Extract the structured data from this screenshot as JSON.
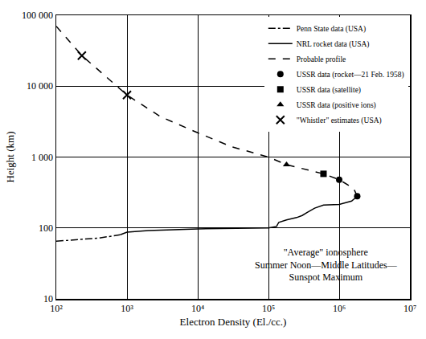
{
  "chart_data": {
    "type": "line",
    "x_label": "Electron Density (El./cc.)",
    "y_label": "Height (km)",
    "annotation": [
      "\"Average\" ionosphere",
      "Summer Noon—Middle Latitudes—",
      "Sunspot Maximum"
    ],
    "log": true,
    "grid": true,
    "legend": "upper right",
    "xlim": [
      100,
      10000000
    ],
    "ylim": [
      10,
      100000
    ],
    "xticks": [
      {
        "value": 100,
        "label": "10²"
      },
      {
        "value": 1000,
        "label": "10³"
      },
      {
        "value": 10000,
        "label": "10⁴"
      },
      {
        "value": 100000,
        "label": "10⁵"
      },
      {
        "value": 1000000,
        "label": "10⁶"
      },
      {
        "value": 10000000,
        "label": "10⁷"
      }
    ],
    "yticks": [
      10,
      100,
      {
        "value": 1000,
        "label": "1 000"
      },
      {
        "value": 10000,
        "label": "10 000"
      },
      {
        "value": 100000,
        "label": "100 000"
      }
    ],
    "series": [
      {
        "name": "Penn State data (USA)",
        "type": "line",
        "line_style": "dashdot",
        "color": "#000000",
        "x": [
          100,
          200,
          400,
          800
        ],
        "values": [
          65,
          68,
          72,
          80
        ]
      },
      {
        "name": "NRL rocket data (USA)",
        "type": "line",
        "line_style": "solid",
        "color": "#000000",
        "x": [
          800,
          1000,
          2000,
          10000,
          100000,
          130000,
          140000,
          180000,
          250000,
          300000,
          350000,
          450000,
          600000,
          1000000,
          1500000,
          1800000
        ],
        "values": [
          80,
          87,
          92,
          97,
          100,
          105,
          120,
          130,
          140,
          150,
          165,
          190,
          210,
          215,
          240,
          280
        ]
      },
      {
        "name": "Probable profile",
        "type": "line",
        "line_style": "dashed",
        "color": "#000000",
        "x": [
          100,
          230,
          1000,
          3000,
          10000,
          30000,
          100000,
          180000,
          600000,
          1000000,
          1600000,
          1800000
        ],
        "values": [
          70000,
          27000,
          7500,
          3700,
          2200,
          1400,
          1000,
          780,
          580,
          480,
          360,
          280
        ]
      },
      {
        "name": "USSR data (rocket—21 Feb. 1958)",
        "type": "scatter",
        "marker": "circle",
        "color": "#000000",
        "x": [
          1000000,
          1800000
        ],
        "values": [
          480,
          280
        ]
      },
      {
        "name": "USSR data (satellite)",
        "type": "scatter",
        "marker": "square",
        "color": "#000000",
        "x": [
          600000
        ],
        "values": [
          580
        ]
      },
      {
        "name": "USSR data (positive ions)",
        "type": "scatter",
        "marker": "triangle",
        "color": "#000000",
        "x": [
          180000
        ],
        "values": [
          780
        ]
      },
      {
        "name": "\"Whistler\" estimates (USA)",
        "type": "scatter",
        "marker": "x",
        "color": "#000000",
        "x": [
          230,
          1000
        ],
        "values": [
          27000,
          7500
        ]
      }
    ]
  }
}
